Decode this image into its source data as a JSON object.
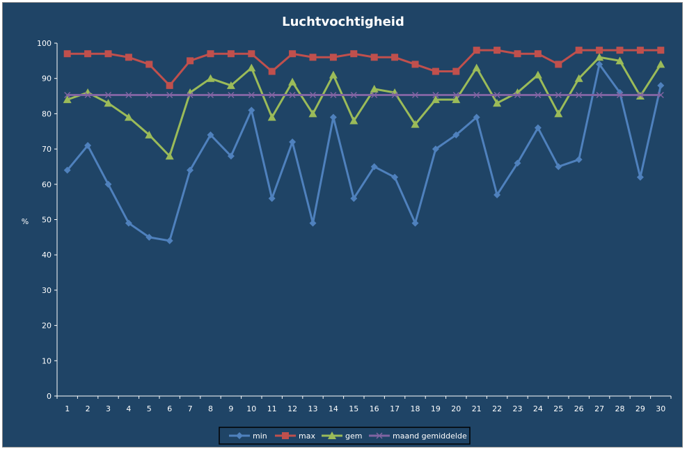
{
  "chart_data": {
    "type": "line",
    "title": "Luchtvochtigheid",
    "xlabel": "",
    "ylabel": "%",
    "ylim": [
      0,
      100
    ],
    "yticks": [
      0,
      10,
      20,
      30,
      40,
      50,
      60,
      70,
      80,
      90,
      100
    ],
    "x": [
      1,
      2,
      3,
      4,
      5,
      6,
      7,
      8,
      9,
      10,
      11,
      12,
      13,
      14,
      15,
      16,
      17,
      18,
      19,
      20,
      21,
      22,
      23,
      24,
      25,
      26,
      27,
      28,
      29,
      30
    ],
    "grid": false,
    "legend_position": "bottom",
    "series": [
      {
        "name": "min",
        "color": "#4f81bd",
        "marker": "diamond",
        "values": [
          64,
          71,
          60,
          49,
          45,
          44,
          64,
          74,
          68,
          81,
          56,
          72,
          49,
          79,
          56,
          65,
          62,
          49,
          70,
          74,
          79,
          57,
          66,
          76,
          65,
          67,
          94,
          86,
          62,
          88
        ]
      },
      {
        "name": "max",
        "color": "#c0504d",
        "marker": "square",
        "values": [
          97,
          97,
          97,
          96,
          94,
          88,
          95,
          97,
          97,
          97,
          92,
          97,
          96,
          96,
          97,
          96,
          96,
          94,
          92,
          92,
          98,
          98,
          97,
          97,
          94,
          98,
          98,
          98,
          98,
          98
        ]
      },
      {
        "name": "gem",
        "color": "#9bbb59",
        "marker": "triangle",
        "values": [
          84,
          86,
          83,
          79,
          74,
          68,
          86,
          90,
          88,
          93,
          79,
          89,
          80,
          91,
          78,
          87,
          86,
          77,
          84,
          84,
          93,
          83,
          86,
          91,
          80,
          90,
          96,
          95,
          85,
          94
        ]
      },
      {
        "name": "maand gemiddelde",
        "color": "#8064a2",
        "marker": "x",
        "values": [
          85.3,
          85.3,
          85.3,
          85.3,
          85.3,
          85.3,
          85.3,
          85.3,
          85.3,
          85.3,
          85.3,
          85.3,
          85.3,
          85.3,
          85.3,
          85.3,
          85.3,
          85.3,
          85.3,
          85.3,
          85.3,
          85.3,
          85.3,
          85.3,
          85.3,
          85.3,
          85.3,
          85.3,
          85.3,
          85.3
        ]
      }
    ]
  },
  "colors": {
    "background": "#1f4466",
    "axis": "#ffffff",
    "text": "#ffffff"
  }
}
